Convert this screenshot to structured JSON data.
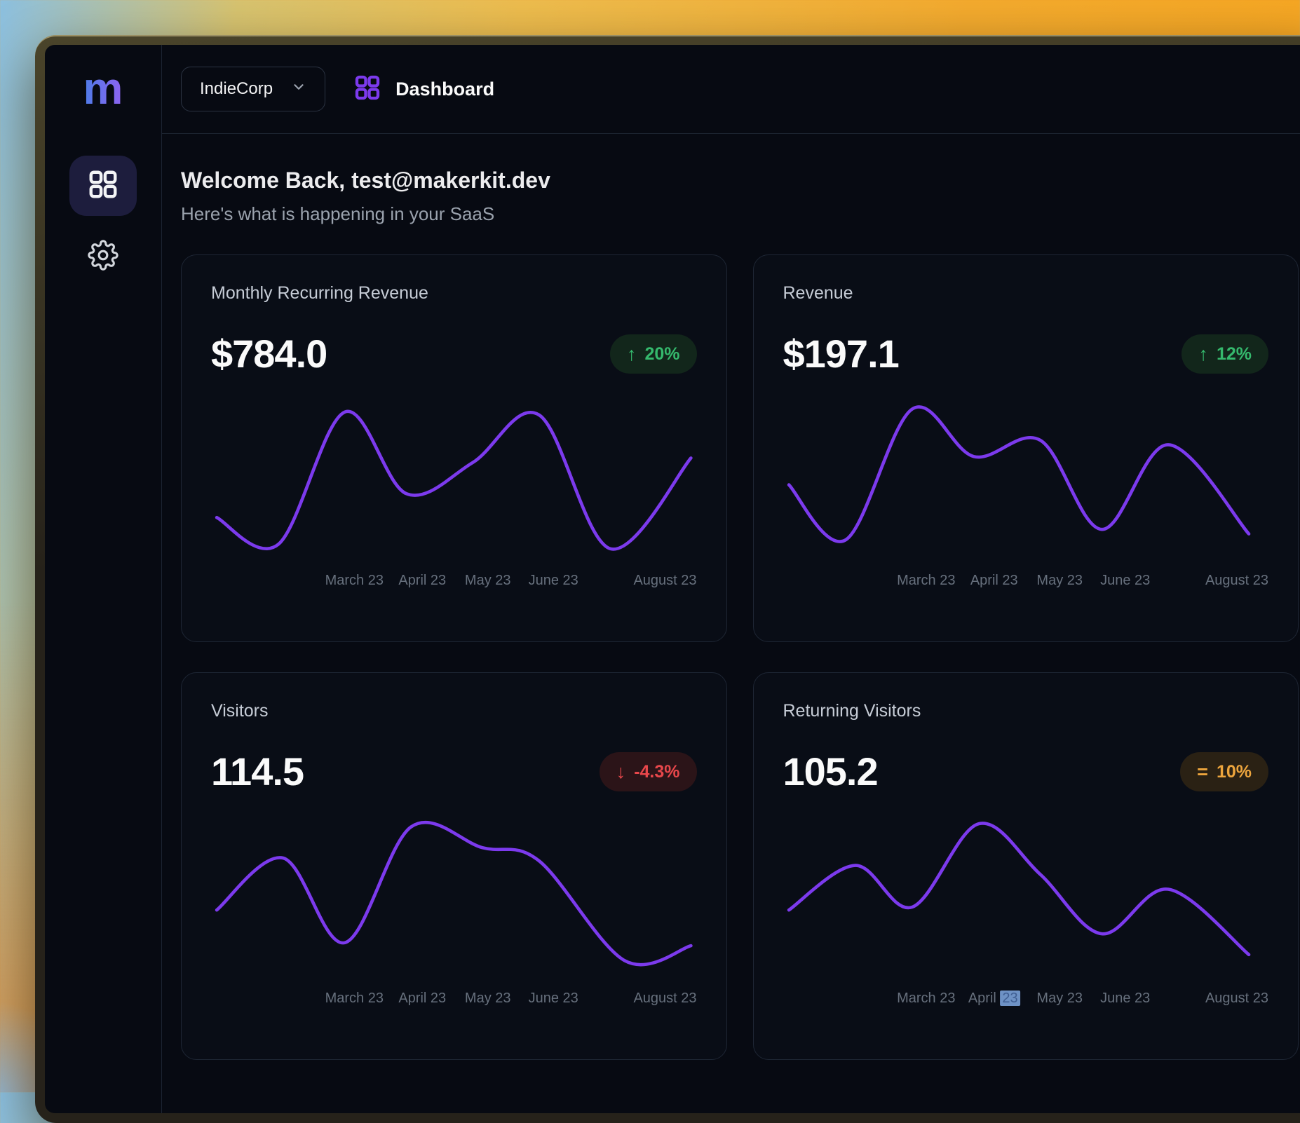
{
  "app": {
    "sidebar": {
      "logo_text": "m"
    },
    "topbar": {
      "org_label": "IndieCorp",
      "page_label": "Dashboard"
    },
    "welcome": {
      "title": "Welcome Back, test@makerkit.dev",
      "subtitle": "Here's what is happening in your SaaS"
    }
  },
  "colors": {
    "chart_line": "#7c3aed",
    "accent_purple": "#7c3aed",
    "badge_up_text": "#35b96d",
    "badge_up_bg": "#12261b",
    "badge_down_text": "#e8474b",
    "badge_down_bg": "#2b1418",
    "badge_flat_text": "#eda53d",
    "badge_flat_bg": "#2a2114",
    "selection_blue": "#6e92c5"
  },
  "cards": [
    {
      "title": "Monthly Recurring Revenue",
      "value": "$784.0",
      "badge": {
        "type": "up",
        "glyph": "↑",
        "label": "20%"
      },
      "x_labels": [
        {
          "label": "March 23"
        },
        {
          "label": "April 23"
        },
        {
          "label": "May 23"
        },
        {
          "label": "June 23"
        },
        {
          "label": "August 23"
        }
      ],
      "trend": [
        [
          0,
          77
        ],
        [
          13,
          95
        ],
        [
          27,
          6
        ],
        [
          40,
          61
        ],
        [
          54,
          40
        ],
        [
          68,
          8
        ],
        [
          83,
          98
        ],
        [
          100,
          37
        ]
      ]
    },
    {
      "title": "Revenue",
      "value": "$197.1",
      "badge": {
        "type": "up",
        "glyph": "↑",
        "label": "12%"
      },
      "x_labels": [
        {
          "label": "March 23"
        },
        {
          "label": "April 23"
        },
        {
          "label": "May 23"
        },
        {
          "label": "June 23"
        },
        {
          "label": "August 23"
        }
      ],
      "trend": [
        [
          0,
          55
        ],
        [
          12,
          92
        ],
        [
          26,
          4
        ],
        [
          39,
          36
        ],
        [
          53,
          25
        ],
        [
          66,
          85
        ],
        [
          80,
          28
        ],
        [
          97,
          88
        ]
      ]
    },
    {
      "title": "Visitors",
      "value": "114.5",
      "badge": {
        "type": "down",
        "glyph": "↓",
        "label": "-4.3%"
      },
      "x_labels": [
        {
          "label": "March 23"
        },
        {
          "label": "April 23"
        },
        {
          "label": "May 23"
        },
        {
          "label": "June 23"
        },
        {
          "label": "August 23"
        }
      ],
      "trend": [
        [
          0,
          60
        ],
        [
          14,
          25
        ],
        [
          27,
          82
        ],
        [
          41,
          4
        ],
        [
          56,
          18
        ],
        [
          68,
          27
        ],
        [
          86,
          94
        ],
        [
          100,
          84
        ]
      ]
    },
    {
      "title": "Returning Visitors",
      "value": "105.2",
      "badge": {
        "type": "flat",
        "glyph": "=",
        "label": "10%"
      },
      "x_labels": [
        {
          "label": "March 23"
        },
        {
          "label": "April 23",
          "highlight": "23"
        },
        {
          "label": "May 23"
        },
        {
          "label": "June 23"
        },
        {
          "label": "August 23"
        }
      ],
      "trend": [
        [
          0,
          60
        ],
        [
          14,
          30
        ],
        [
          26,
          58
        ],
        [
          40,
          2
        ],
        [
          53,
          36
        ],
        [
          66,
          76
        ],
        [
          80,
          46
        ],
        [
          97,
          90
        ]
      ]
    }
  ]
}
